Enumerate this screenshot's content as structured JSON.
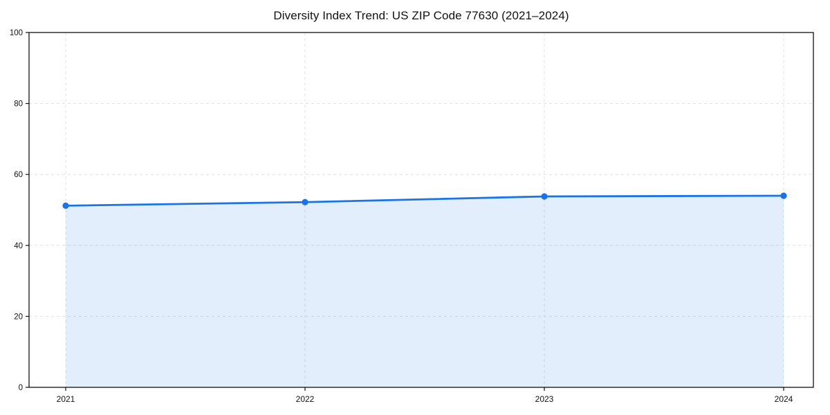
{
  "chart_data": {
    "type": "area",
    "title": "Diversity Index Trend: US ZIP Code 77630 (2021–2024)",
    "x": [
      "2021",
      "2022",
      "2023",
      "2024"
    ],
    "series": [
      {
        "name": "Diversity Index",
        "values": [
          51.2,
          52.2,
          53.8,
          54.0
        ]
      }
    ],
    "xlabel": "",
    "ylabel": "",
    "ylim": [
      0,
      100
    ],
    "yticks": [
      0,
      20,
      40,
      60,
      80,
      100
    ],
    "grid": true,
    "legend": "none",
    "colors": {
      "line": "#1a73e8",
      "marker": "#1a73e8",
      "fill": "rgba(26,115,232,0.12)",
      "grid": "#e0e0e0",
      "spine": "#111111",
      "text": "#111111",
      "background": "#ffffff"
    }
  }
}
